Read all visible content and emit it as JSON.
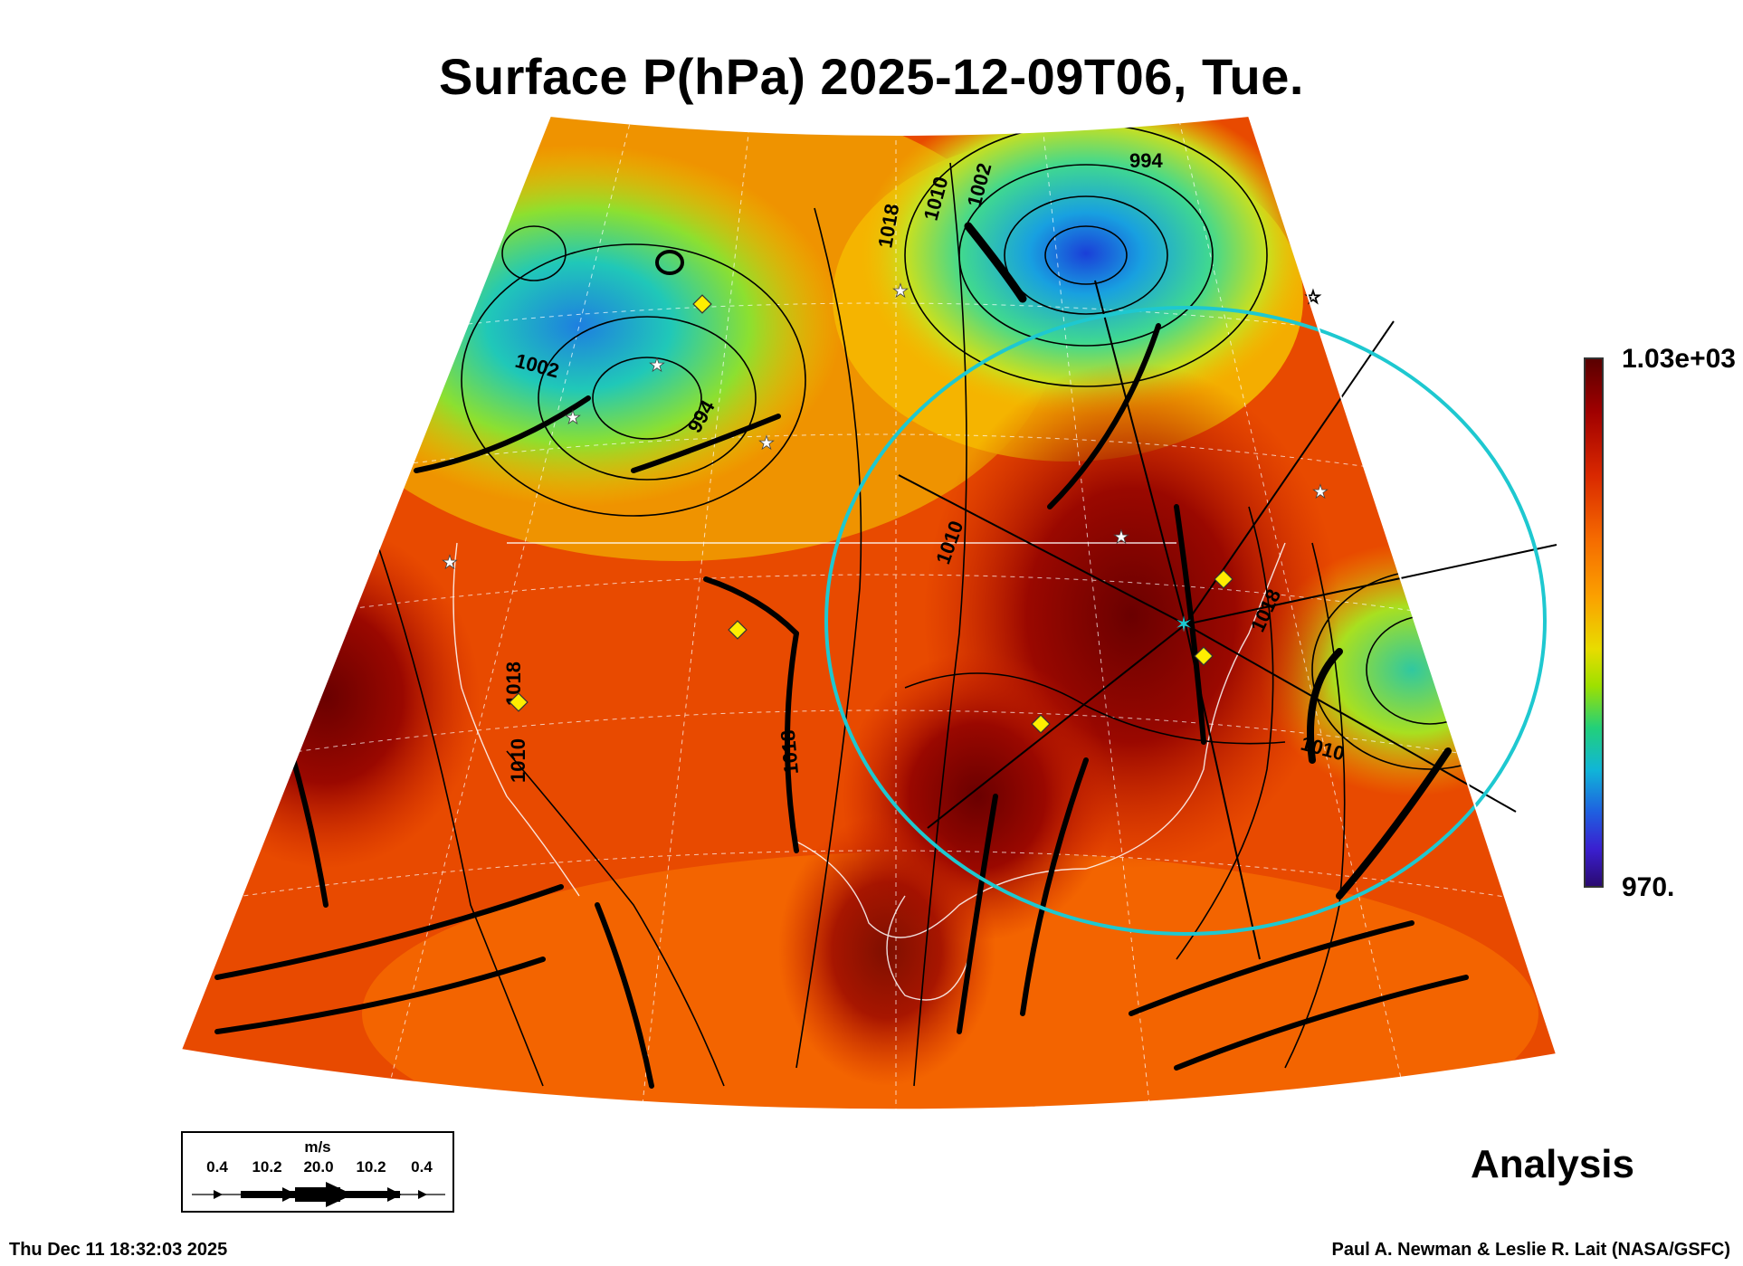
{
  "title": "Surface P(hPa) 2025-12-09T06, Tue.",
  "colorbar": {
    "max_label": "1.03e+03",
    "min_label": "970."
  },
  "contour_labels": [
    "994",
    "1002",
    "1010",
    "1018",
    "1002",
    "994",
    "1010",
    "1018",
    "1010",
    "1018",
    "1010",
    "1018"
  ],
  "wind_legend": {
    "unit": "m/s",
    "values": [
      "0.4",
      "10.2",
      "20.0",
      "10.2",
      "0.4"
    ]
  },
  "panel_label": "Analysis",
  "timestamp": "Thu Dec 11 18:32:03 2025",
  "credit": "Paul A. Newman & Leslie R. Lait (NASA/GSFC)",
  "colors": {
    "background": "#ffffff",
    "cyan_ring": "#1ec8d0",
    "marker_yellow": "#ffee00",
    "high_pressure": "#8b0000",
    "low_pressure": "#1a8ad8"
  },
  "marker_icons": [
    "diamond-marker-icon",
    "star-marker-icon",
    "cyan-center-star-icon"
  ]
}
